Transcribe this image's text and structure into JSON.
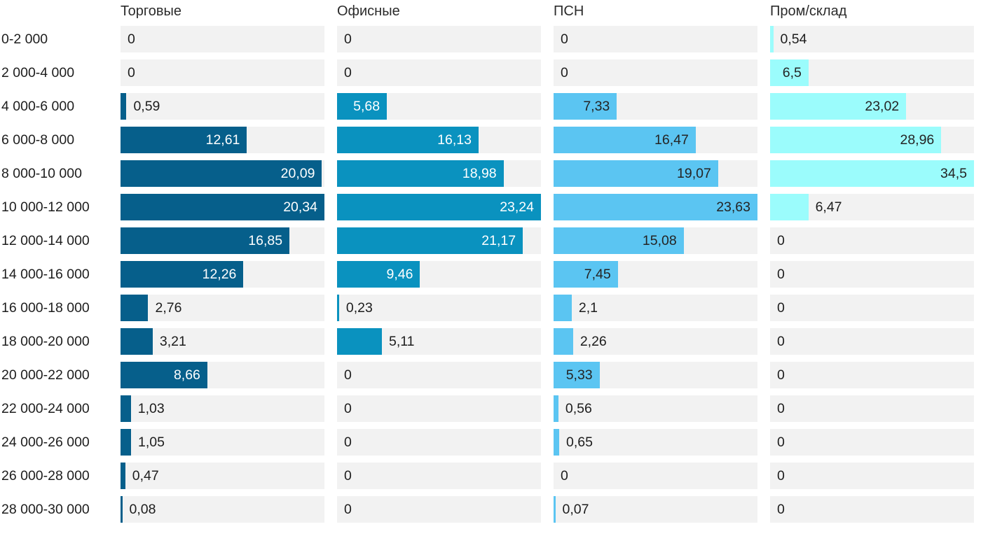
{
  "chart_data": {
    "type": "bar",
    "orientation": "horizontal",
    "title": "",
    "xlabel": "",
    "ylabel": "",
    "scaling": "each column scaled independently to its own max value",
    "decimal_separator": ",",
    "categories": [
      "0-2 000",
      "2 000-4 000",
      "4 000-6 000",
      "6 000-8 000",
      "8 000-10 000",
      "10 000-12 000",
      "12 000-14 000",
      "14 000-16 000",
      "16 000-18 000",
      "18 000-20 000",
      "20 000-22 000",
      "22 000-24 000",
      "24 000-26 000",
      "26 000-28 000",
      "28 000-30 000"
    ],
    "series": [
      {
        "name": "Торговые",
        "color": "#065f8b",
        "inside_label_color": "#ffffff",
        "values": [
          0,
          0,
          0.59,
          12.61,
          20.09,
          20.34,
          16.85,
          12.26,
          2.76,
          3.21,
          8.66,
          1.03,
          1.05,
          0.47,
          0.08
        ]
      },
      {
        "name": "Офисные",
        "color": "#0a92bf",
        "inside_label_color": "#ffffff",
        "values": [
          0,
          0,
          5.68,
          16.13,
          18.98,
          23.24,
          21.17,
          9.46,
          0.23,
          5.11,
          0,
          0,
          0,
          0,
          0
        ]
      },
      {
        "name": "ПСН",
        "color": "#5bc5f2",
        "inside_label_color": "#242424",
        "values": [
          0,
          0,
          7.33,
          16.47,
          19.07,
          23.63,
          15.08,
          7.45,
          2.1,
          2.26,
          5.33,
          0.56,
          0.65,
          0,
          0.07
        ]
      },
      {
        "name": "Пром/склад",
        "color": "#9bfcfc",
        "inside_label_color": "#242424",
        "values": [
          0.54,
          6.5,
          23.02,
          28.96,
          34.5,
          6.47,
          0,
          0,
          0,
          0,
          0,
          0,
          0,
          0,
          0
        ]
      }
    ],
    "colors": {
      "background": "#ffffff",
      "track": "#f2f2f2",
      "text_dark": "#1d1d1d",
      "text_inside_light": "#ffffff"
    }
  }
}
